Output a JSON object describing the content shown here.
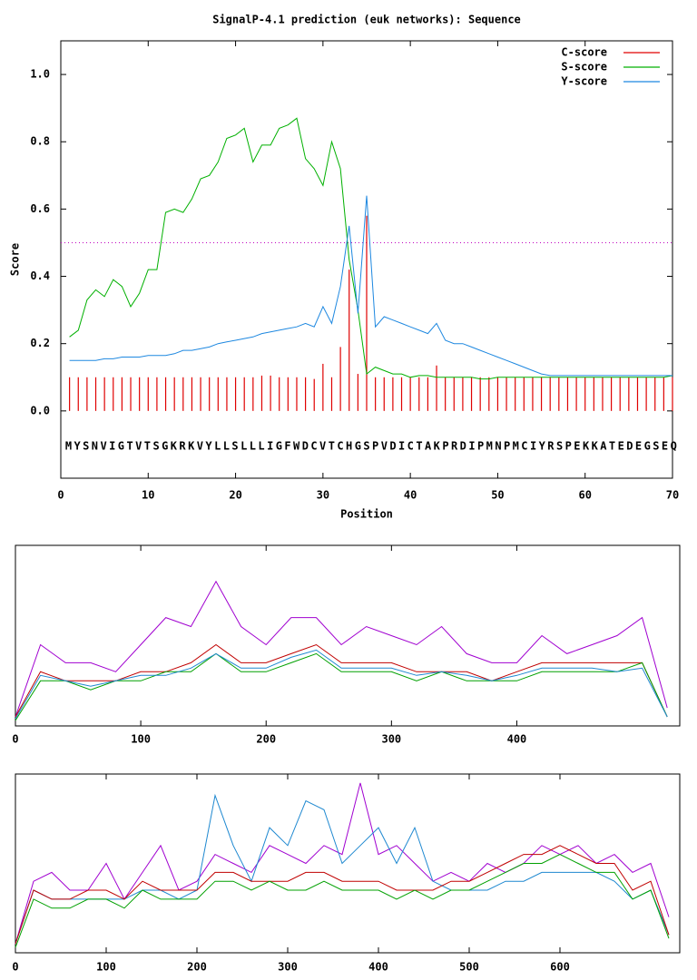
{
  "chart_data": [
    {
      "type": "line",
      "title": "SignalP-4.1 prediction (euk networks): Sequence",
      "x_label": "Position",
      "y_label": "Score",
      "sequence": "MYSNVIGTVTSGKRKVYLLSLLLIGFWDCVTCHGSPVDICTAKPRDIPMNPMCIYRSPEKKATEDEGSEQ",
      "xlim": [
        0,
        70
      ],
      "ylim": [
        -0.2,
        1.1
      ],
      "xticks": [
        0,
        10,
        20,
        30,
        40,
        50,
        60,
        70
      ],
      "yticks": [
        {
          "value": 0,
          "label": "0.0"
        },
        {
          "value": 0.2,
          "label": "0.2"
        },
        {
          "value": 0.4,
          "label": "0.4"
        },
        {
          "value": 0.6,
          "label": "0.6"
        },
        {
          "value": 0.8,
          "label": "0.8"
        },
        {
          "value": 1,
          "label": "1.0"
        }
      ],
      "threshold": 0.5,
      "threshold_color": "#c000c0",
      "legend": "top-right",
      "x": [
        1,
        2,
        3,
        4,
        5,
        6,
        7,
        8,
        9,
        10,
        11,
        12,
        13,
        14,
        15,
        16,
        17,
        18,
        19,
        20,
        21,
        22,
        23,
        24,
        25,
        26,
        27,
        28,
        29,
        30,
        31,
        32,
        33,
        34,
        35,
        36,
        37,
        38,
        39,
        40,
        41,
        42,
        43,
        44,
        45,
        46,
        47,
        48,
        49,
        50,
        51,
        52,
        53,
        54,
        55,
        56,
        57,
        58,
        59,
        60,
        61,
        62,
        63,
        64,
        65,
        66,
        67,
        68,
        69,
        70
      ],
      "series": [
        {
          "name": "C-score",
          "color": "#e00000",
          "mark": "impulse",
          "values": [
            0.1,
            0.1,
            0.1,
            0.1,
            0.1,
            0.1,
            0.1,
            0.1,
            0.1,
            0.1,
            0.1,
            0.1,
            0.1,
            0.1,
            0.1,
            0.1,
            0.1,
            0.1,
            0.1,
            0.1,
            0.1,
            0.1,
            0.105,
            0.105,
            0.1,
            0.1,
            0.1,
            0.1,
            0.095,
            0.14,
            0.1,
            0.19,
            0.42,
            0.11,
            0.58,
            0.1,
            0.1,
            0.1,
            0.1,
            0.1,
            0.1,
            0.1,
            0.135,
            0.1,
            0.1,
            0.1,
            0.1,
            0.1,
            0.1,
            0.1,
            0.1,
            0.1,
            0.1,
            0.1,
            0.1,
            0.1,
            0.1,
            0.1,
            0.1,
            0.1,
            0.1,
            0.1,
            0.1,
            0.1,
            0.1,
            0.1,
            0.1,
            0.1,
            0.1,
            0.1
          ]
        },
        {
          "name": "S-score",
          "color": "#00b000",
          "mark": "line",
          "values": [
            0.22,
            0.24,
            0.33,
            0.36,
            0.34,
            0.39,
            0.37,
            0.31,
            0.35,
            0.42,
            0.42,
            0.59,
            0.6,
            0.59,
            0.63,
            0.69,
            0.7,
            0.74,
            0.81,
            0.82,
            0.84,
            0.74,
            0.79,
            0.79,
            0.84,
            0.85,
            0.87,
            0.75,
            0.72,
            0.67,
            0.8,
            0.72,
            0.45,
            0.3,
            0.11,
            0.13,
            0.12,
            0.11,
            0.11,
            0.1,
            0.105,
            0.105,
            0.1,
            0.1,
            0.1,
            0.1,
            0.1,
            0.095,
            0.095,
            0.1,
            0.1,
            0.1,
            0.1,
            0.1,
            0.1,
            0.1,
            0.1,
            0.1,
            0.1,
            0.1,
            0.1,
            0.1,
            0.1,
            0.1,
            0.1,
            0.1,
            0.1,
            0.1,
            0.1,
            0.105
          ]
        },
        {
          "name": "Y-score",
          "color": "#1e88e0",
          "mark": "line",
          "values": [
            0.15,
            0.15,
            0.15,
            0.15,
            0.155,
            0.155,
            0.16,
            0.16,
            0.16,
            0.165,
            0.165,
            0.165,
            0.17,
            0.18,
            0.18,
            0.185,
            0.19,
            0.2,
            0.205,
            0.21,
            0.215,
            0.22,
            0.23,
            0.235,
            0.24,
            0.245,
            0.25,
            0.26,
            0.25,
            0.31,
            0.26,
            0.37,
            0.55,
            0.29,
            0.64,
            0.25,
            0.28,
            0.27,
            0.26,
            0.25,
            0.24,
            0.23,
            0.26,
            0.21,
            0.2,
            0.2,
            0.19,
            0.18,
            0.17,
            0.16,
            0.15,
            0.14,
            0.13,
            0.12,
            0.11,
            0.105,
            0.105,
            0.105,
            0.105,
            0.105,
            0.105,
            0.105,
            0.105,
            0.105,
            0.105,
            0.105,
            0.105,
            0.105,
            0.105,
            0.105
          ]
        }
      ]
    },
    {
      "type": "line",
      "xlim": [
        0,
        530
      ],
      "ylim": [
        0,
        100
      ],
      "xticks": [
        0,
        100,
        200,
        300,
        400
      ],
      "x": [
        0,
        20,
        40,
        60,
        80,
        100,
        120,
        140,
        160,
        180,
        200,
        220,
        240,
        260,
        280,
        300,
        320,
        340,
        360,
        380,
        400,
        420,
        440,
        460,
        480,
        500,
        520
      ],
      "series": [
        {
          "color": "#a000d0",
          "values": [
            5,
            45,
            35,
            35,
            30,
            45,
            60,
            55,
            80,
            55,
            45,
            60,
            60,
            45,
            55,
            50,
            45,
            55,
            40,
            35,
            35,
            50,
            40,
            45,
            50,
            60,
            10
          ]
        },
        {
          "color": "#c00000",
          "values": [
            5,
            30,
            25,
            25,
            25,
            30,
            30,
            35,
            45,
            35,
            35,
            40,
            45,
            35,
            35,
            35,
            30,
            30,
            30,
            25,
            30,
            35,
            35,
            35,
            35,
            35,
            5
          ]
        },
        {
          "color": "#00a000",
          "values": [
            3,
            25,
            25,
            20,
            25,
            25,
            30,
            30,
            40,
            30,
            30,
            35,
            40,
            30,
            30,
            30,
            25,
            30,
            25,
            25,
            25,
            30,
            30,
            30,
            30,
            35,
            5
          ]
        },
        {
          "color": "#1e88d0",
          "values": [
            4,
            28,
            25,
            22,
            25,
            28,
            28,
            32,
            40,
            32,
            32,
            38,
            42,
            32,
            32,
            32,
            28,
            30,
            28,
            25,
            28,
            32,
            32,
            32,
            30,
            32,
            5
          ]
        }
      ]
    },
    {
      "type": "line",
      "xlim": [
        0,
        732
      ],
      "ylim": [
        0,
        100
      ],
      "xticks": [
        0,
        100,
        200,
        300,
        400,
        500,
        600
      ],
      "x": [
        0,
        20,
        40,
        60,
        80,
        100,
        120,
        140,
        160,
        180,
        200,
        220,
        240,
        260,
        280,
        300,
        320,
        340,
        360,
        380,
        400,
        420,
        440,
        460,
        480,
        500,
        520,
        540,
        560,
        580,
        600,
        620,
        640,
        660,
        680,
        700,
        720
      ],
      "series": [
        {
          "color": "#a000d0",
          "values": [
            5,
            40,
            45,
            35,
            35,
            50,
            30,
            45,
            60,
            35,
            40,
            55,
            50,
            45,
            60,
            55,
            50,
            60,
            55,
            95,
            55,
            60,
            50,
            40,
            45,
            40,
            50,
            45,
            50,
            60,
            55,
            60,
            50,
            55,
            45,
            50,
            20
          ]
        },
        {
          "color": "#1e88d0",
          "values": [
            5,
            35,
            30,
            30,
            30,
            30,
            30,
            35,
            35,
            30,
            35,
            88,
            60,
            40,
            70,
            60,
            85,
            80,
            50,
            60,
            70,
            50,
            70,
            40,
            35,
            35,
            35,
            40,
            40,
            45,
            45,
            45,
            45,
            40,
            30,
            35,
            10
          ]
        },
        {
          "color": "#c00000",
          "values": [
            5,
            35,
            30,
            30,
            35,
            35,
            30,
            40,
            35,
            35,
            35,
            45,
            45,
            40,
            40,
            40,
            45,
            45,
            40,
            40,
            40,
            35,
            35,
            35,
            40,
            40,
            45,
            50,
            55,
            55,
            60,
            55,
            50,
            50,
            35,
            40,
            10
          ]
        },
        {
          "color": "#00a000",
          "values": [
            3,
            30,
            25,
            25,
            30,
            30,
            25,
            35,
            30,
            30,
            30,
            40,
            40,
            35,
            40,
            35,
            35,
            40,
            35,
            35,
            35,
            30,
            35,
            30,
            35,
            35,
            40,
            45,
            50,
            50,
            55,
            50,
            45,
            45,
            30,
            35,
            8
          ]
        }
      ]
    }
  ]
}
